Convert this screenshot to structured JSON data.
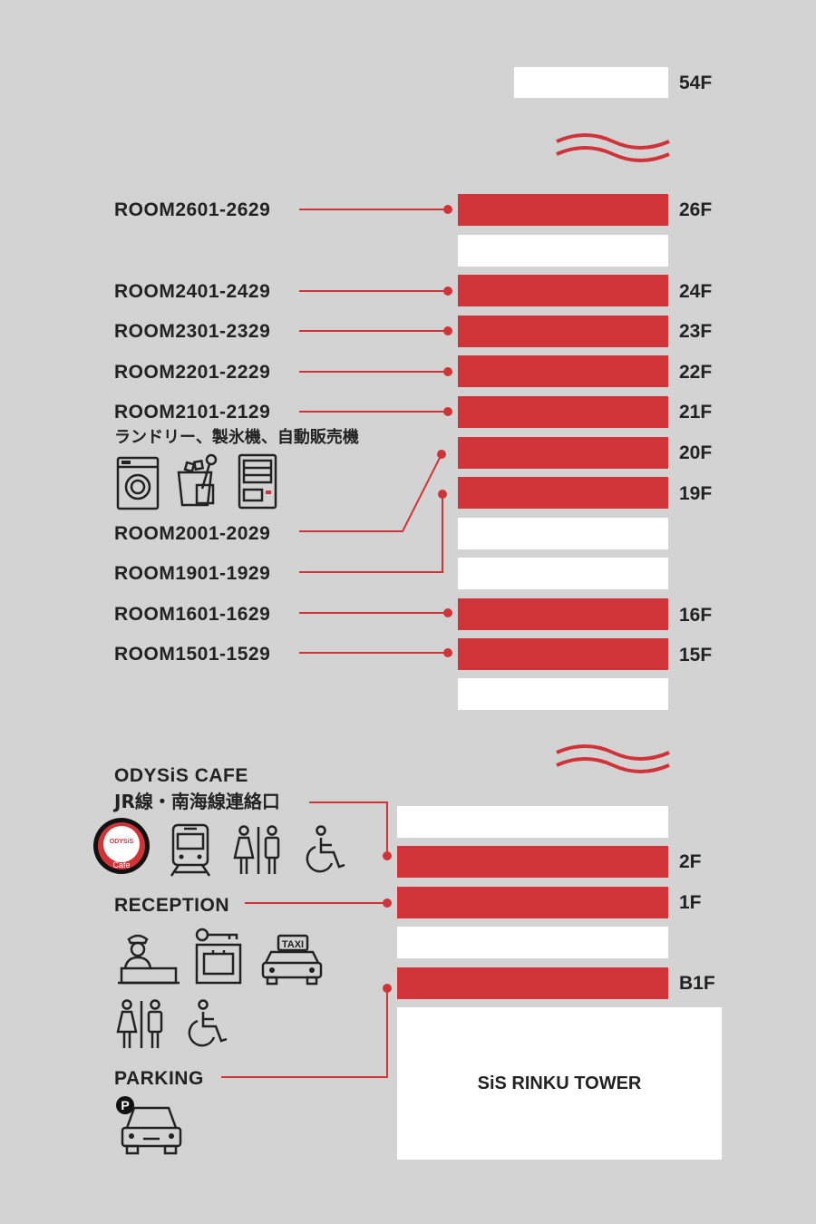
{
  "floors": {
    "f54": "54F",
    "f26": "26F",
    "f24": "24F",
    "f23": "23F",
    "f22": "22F",
    "f21": "21F",
    "f20": "20F",
    "f19": "19F",
    "f16": "16F",
    "f15": "15F",
    "f2": "2F",
    "f1": "1F",
    "fb1": "B1F"
  },
  "rooms": {
    "r26": "ROOM2601-2629",
    "r24": "ROOM2401-2429",
    "r23": "ROOM2301-2329",
    "r22": "ROOM2201-2229",
    "r21": "ROOM2101-2129",
    "r20": "ROOM2001-2029",
    "r19": "ROOM1901-1929",
    "r16": "ROOM1601-1629",
    "r15": "ROOM1501-1529"
  },
  "facilities": {
    "laundry_text": "ランドリー、製氷機、自動販売機",
    "cafe": "ODYSiS CAFE",
    "rail": "JR線・南海線連絡口",
    "reception": "RECEPTION",
    "parking": "PARKING",
    "cafe_logo_text": "Cafe",
    "cafe_logo_brand": "ODYSiS",
    "taxi_sign": "TAXI",
    "parking_sign": "P"
  },
  "tower_name": "SiS RINKU TOWER",
  "colors": {
    "accent": "#d13438",
    "background": "#d3d3d3",
    "floor_inactive": "#ffffff",
    "text": "#222222"
  },
  "icons": [
    "laundry-icon",
    "ice-machine-icon",
    "vending-machine-icon",
    "cafe-logo-icon",
    "train-icon",
    "restroom-icon",
    "wheelchair-icon",
    "reception-desk-icon",
    "key-locker-icon",
    "taxi-icon",
    "parking-icon"
  ]
}
